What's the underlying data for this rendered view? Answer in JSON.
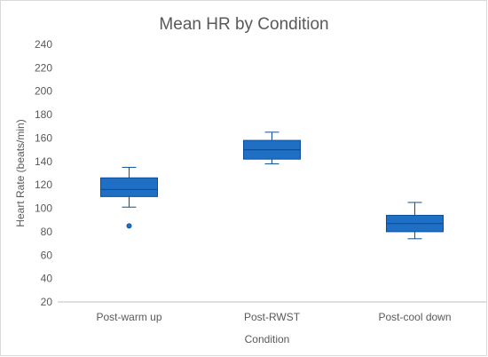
{
  "chart_data": {
    "type": "box",
    "title": "Mean HR by Condition",
    "xlabel": "Condition",
    "ylabel": "Heart Rate (beats/min)",
    "ylim": [
      20,
      240
    ],
    "yticks": [
      20,
      40,
      60,
      80,
      100,
      120,
      140,
      160,
      180,
      200,
      220,
      240
    ],
    "grid": false,
    "categories": [
      "Post-warm up",
      "Post-RWST",
      "Post-cool down"
    ],
    "boxes": [
      {
        "category": "Post-warm up",
        "whisker_low": 101,
        "q1": 110,
        "median": 116,
        "q3": 126,
        "whisker_high": 135,
        "outliers": [
          85
        ]
      },
      {
        "category": "Post-RWST",
        "whisker_low": 138,
        "q1": 142,
        "median": 150,
        "q3": 158,
        "whisker_high": 165,
        "outliers": []
      },
      {
        "category": "Post-cool down",
        "whisker_low": 74,
        "q1": 80,
        "median": 87,
        "q3": 94,
        "whisker_high": 105,
        "outliers": []
      }
    ],
    "colors": {
      "box_fill": "#1f6fc5",
      "box_stroke": "#0b4f9c",
      "axis": "#bfbfbf",
      "text": "#595959"
    }
  }
}
